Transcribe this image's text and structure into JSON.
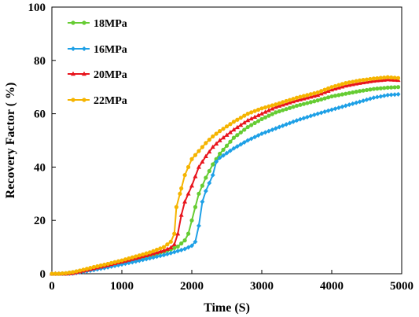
{
  "chart_data": {
    "type": "line",
    "title": "",
    "xlabel": "Time (S)",
    "ylabel": "Recovery  Factor ( %)",
    "xlim": [
      0,
      5000
    ],
    "ylim": [
      0,
      100
    ],
    "xticks": [
      0,
      1000,
      2000,
      3000,
      4000,
      5000
    ],
    "yticks": [
      0,
      20,
      40,
      60,
      80,
      100
    ],
    "grid": false,
    "legend_position": "top-left",
    "series": [
      {
        "name": "18MPa",
        "color": "#66CC33",
        "marker": "circle",
        "points": [
          [
            0,
            0
          ],
          [
            100,
            0
          ],
          [
            200,
            0.2
          ],
          [
            300,
            0.6
          ],
          [
            400,
            1.1
          ],
          [
            600,
            2.1
          ],
          [
            800,
            3.1
          ],
          [
            1000,
            4.2
          ],
          [
            1200,
            5.4
          ],
          [
            1400,
            6.7
          ],
          [
            1600,
            8.2
          ],
          [
            1700,
            9.1
          ],
          [
            1800,
            10.2
          ],
          [
            1900,
            12.5
          ],
          [
            1950,
            15
          ],
          [
            2000,
            20
          ],
          [
            2050,
            25
          ],
          [
            2100,
            30
          ],
          [
            2200,
            36
          ],
          [
            2300,
            41
          ],
          [
            2400,
            45
          ],
          [
            2600,
            51
          ],
          [
            2800,
            55
          ],
          [
            3000,
            58
          ],
          [
            3200,
            60.5
          ],
          [
            3500,
            63
          ],
          [
            3800,
            65
          ],
          [
            4000,
            66.5
          ],
          [
            4200,
            67.5
          ],
          [
            4400,
            68.5
          ],
          [
            4600,
            69.3
          ],
          [
            4800,
            69.8
          ],
          [
            4950,
            70
          ]
        ]
      },
      {
        "name": "16MPa",
        "color": "#1EA0E6",
        "marker": "diamond",
        "points": [
          [
            0,
            0
          ],
          [
            100,
            0
          ],
          [
            200,
            0
          ],
          [
            300,
            0.1
          ],
          [
            400,
            0.5
          ],
          [
            600,
            1.4
          ],
          [
            800,
            2.4
          ],
          [
            1000,
            3.5
          ],
          [
            1200,
            4.6
          ],
          [
            1400,
            5.8
          ],
          [
            1600,
            7
          ],
          [
            1800,
            8.5
          ],
          [
            1900,
            9.3
          ],
          [
            2000,
            10.5
          ],
          [
            2050,
            12
          ],
          [
            2100,
            18
          ],
          [
            2150,
            27
          ],
          [
            2200,
            31
          ],
          [
            2300,
            37
          ],
          [
            2350,
            42
          ],
          [
            2400,
            43.5
          ],
          [
            2600,
            47
          ],
          [
            2800,
            50
          ],
          [
            3000,
            52.5
          ],
          [
            3200,
            54.5
          ],
          [
            3500,
            57.5
          ],
          [
            3800,
            60
          ],
          [
            4000,
            61.5
          ],
          [
            4200,
            63
          ],
          [
            4400,
            64.5
          ],
          [
            4600,
            66
          ],
          [
            4800,
            67
          ],
          [
            4950,
            67.3
          ]
        ]
      },
      {
        "name": "20MPa",
        "color": "#E8141C",
        "marker": "triangle",
        "points": [
          [
            0,
            0
          ],
          [
            100,
            0
          ],
          [
            200,
            0
          ],
          [
            300,
            0.2
          ],
          [
            400,
            0.8
          ],
          [
            600,
            2
          ],
          [
            800,
            3.2
          ],
          [
            1000,
            4.5
          ],
          [
            1200,
            5.8
          ],
          [
            1400,
            7.2
          ],
          [
            1600,
            8.7
          ],
          [
            1700,
            9.8
          ],
          [
            1750,
            11
          ],
          [
            1800,
            15
          ],
          [
            1850,
            22
          ],
          [
            1900,
            27
          ],
          [
            2000,
            33
          ],
          [
            2100,
            40
          ],
          [
            2200,
            44
          ],
          [
            2300,
            47.5
          ],
          [
            2400,
            50
          ],
          [
            2600,
            54
          ],
          [
            2800,
            57.5
          ],
          [
            3000,
            60
          ],
          [
            3200,
            62.5
          ],
          [
            3500,
            65
          ],
          [
            3800,
            67
          ],
          [
            4000,
            69
          ],
          [
            4200,
            70.5
          ],
          [
            4400,
            71.5
          ],
          [
            4600,
            72.3
          ],
          [
            4800,
            72.8
          ],
          [
            4950,
            72.6
          ]
        ]
      },
      {
        "name": "22MPa",
        "color": "#F5B400",
        "marker": "circle",
        "points": [
          [
            0,
            0
          ],
          [
            100,
            0
          ],
          [
            200,
            0.2
          ],
          [
            300,
            0.6
          ],
          [
            400,
            1.2
          ],
          [
            600,
            2.5
          ],
          [
            800,
            3.7
          ],
          [
            1000,
            5
          ],
          [
            1200,
            6.5
          ],
          [
            1400,
            8
          ],
          [
            1600,
            10
          ],
          [
            1700,
            12
          ],
          [
            1750,
            15
          ],
          [
            1780,
            25
          ],
          [
            1850,
            32
          ],
          [
            1900,
            37
          ],
          [
            2000,
            43
          ],
          [
            2100,
            46
          ],
          [
            2200,
            49
          ],
          [
            2300,
            51.5
          ],
          [
            2400,
            53.5
          ],
          [
            2600,
            57
          ],
          [
            2800,
            60
          ],
          [
            3000,
            62
          ],
          [
            3200,
            63.5
          ],
          [
            3500,
            66
          ],
          [
            3800,
            68
          ],
          [
            4000,
            70
          ],
          [
            4200,
            71.5
          ],
          [
            4400,
            72.5
          ],
          [
            4600,
            73.2
          ],
          [
            4800,
            73.7
          ],
          [
            4950,
            73.4
          ]
        ]
      }
    ]
  }
}
